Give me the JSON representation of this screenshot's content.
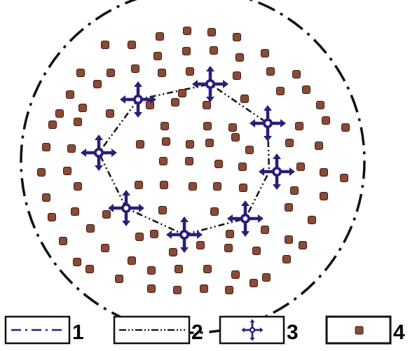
{
  "colors": {
    "boundary": "#111111",
    "marker": "#2b1d7a",
    "marker_center": "#ffffff",
    "dot": "#8b4a35",
    "dot_outline": "#3a1a10"
  },
  "icons": {
    "legend_1": "dash-dot-line",
    "legend_2": "dash-dot-dot-line",
    "legend_3": "four-arrow-cross-marker",
    "legend_4": "brown-square-dot"
  },
  "legend": [
    {
      "label": "1"
    },
    {
      "label": "2"
    },
    {
      "label": "3"
    },
    {
      "label": "4"
    }
  ],
  "counts": {
    "cross_markers": 8
  }
}
